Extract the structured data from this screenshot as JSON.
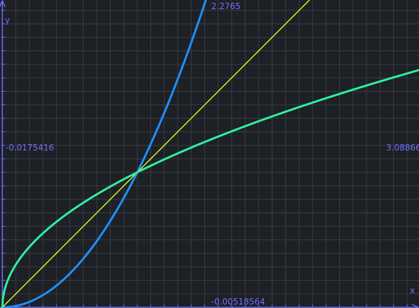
{
  "chart_data": {
    "type": "line",
    "title": "",
    "xlabel": "x",
    "ylabel": "y",
    "xlim": [
      -0.0175416,
      3.08866
    ],
    "ylim": [
      -0.00518564,
      2.2765
    ],
    "edge_labels": {
      "x_min": "-0.0175416",
      "x_max": "3.08866",
      "y_min": "-0.00518564",
      "y_max": "2.2765"
    },
    "grid": true,
    "series": [
      {
        "color": "#1e90ff",
        "expression": "x^2"
      },
      {
        "color": "#d7ef2a",
        "expression": "x"
      },
      {
        "color": "#2ff0a0",
        "expression": "sqrt(x)"
      }
    ]
  }
}
